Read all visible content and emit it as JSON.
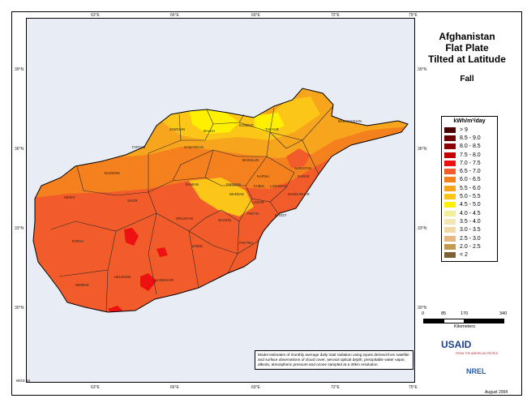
{
  "map": {
    "title": [
      "Afghanistan",
      "Flat Plate",
      "Tilted at Latitude"
    ],
    "season": "Fall",
    "lon_ticks": [
      "63°E",
      "66°E",
      "69°E",
      "72°E",
      "75°E"
    ],
    "lat_ticks": [
      "39°N",
      "36°N",
      "33°N",
      "30°N"
    ],
    "provinces": [
      "JAWZJAN",
      "BALKH",
      "KUNDUZ",
      "TAKHAR",
      "BADAKHSHAN",
      "FARYAB",
      "SAMANGAN",
      "BAGHLAN",
      "BADGHIS",
      "NURISTAN",
      "KUNAR",
      "PARWAN",
      "KAPISA",
      "LAGHMAN",
      "NANGARHAR",
      "BAMIAN",
      "WARDAK",
      "KABUL",
      "LOGAR",
      "PAKTIA",
      "HERAT",
      "GHOR",
      "ORUZGAN",
      "GHAZNI",
      "PAKTIKA",
      "KHOST",
      "FARAH",
      "ZABUL",
      "HELMAND",
      "KANDAHAR",
      "NIMROZ"
    ],
    "projection_note": "WGS 84",
    "date": "August 2004"
  },
  "legend": {
    "unit": "kWh/m²/day",
    "classes": [
      {
        "label": "> 9",
        "color": "#4a0000"
      },
      {
        "label": "8.5 - 9.0",
        "color": "#6b0000"
      },
      {
        "label": "8.0 - 8.5",
        "color": "#8f0000"
      },
      {
        "label": "7.5 - 8.0",
        "color": "#c40000"
      },
      {
        "label": "7.0 - 7.5",
        "color": "#ee1111"
      },
      {
        "label": "6.5 - 7.0",
        "color": "#f25c2a"
      },
      {
        "label": "6.0 - 6.5",
        "color": "#f4801e"
      },
      {
        "label": "5.5 - 6.0",
        "color": "#f7a51c"
      },
      {
        "label": "5.0 - 5.5",
        "color": "#fbc617"
      },
      {
        "label": "4.5 - 5.0",
        "color": "#fff000"
      },
      {
        "label": "4.0 - 4.5",
        "color": "#f2ef9a"
      },
      {
        "label": "3.5 - 4.0",
        "color": "#f0e7b3"
      },
      {
        "label": "3.0 - 3.5",
        "color": "#f1d8a4"
      },
      {
        "label": "2.5 - 3.0",
        "color": "#e7b882"
      },
      {
        "label": "2.0 - 2.5",
        "color": "#c49a53"
      },
      {
        "label": "< 2",
        "color": "#7d6233"
      }
    ]
  },
  "scale": {
    "labels": [
      "0",
      "85",
      "170",
      "340"
    ],
    "unit": "Kilometers"
  },
  "note": "Model estimates of monthly average daily total radiation using inputs derived from satellite and surface observations of cloud cover, aerosol optical depth, precipitable water vapor, albedo, atmospheric pressure and ozone sampled at a 40km resolution.",
  "logos": {
    "usaid": "USAID",
    "usaid_sub": "FROM THE AMERICAN PEOPLE",
    "nrel": "NREL"
  }
}
